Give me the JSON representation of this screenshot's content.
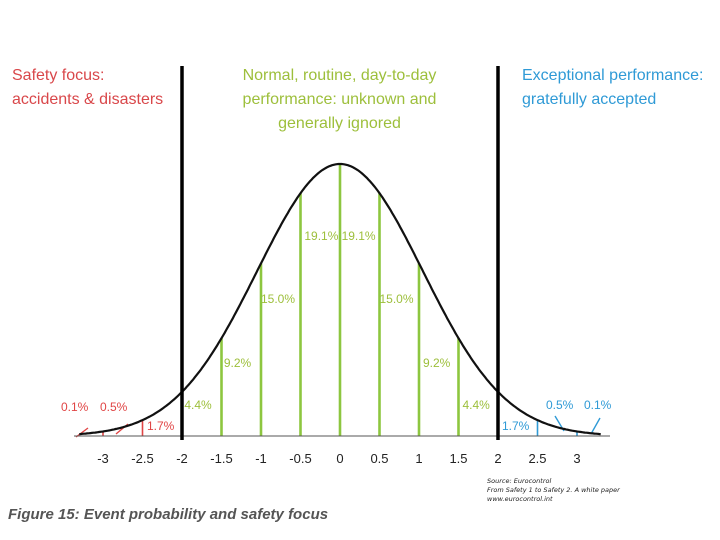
{
  "chart_data": {
    "type": "area",
    "title": "Figure 15: Event probability and safety focus",
    "xlabel": "",
    "ylabel": "",
    "xlim": [
      -3.2,
      3.2
    ],
    "x_ticks": [
      "-3",
      "-2.5",
      "-2",
      "-1.5",
      "-1",
      "-0.5",
      "0",
      "0.5",
      "1",
      "1.5",
      "2",
      "2.5",
      "3"
    ],
    "dividers": [
      -2,
      2
    ],
    "interval_labels": {
      "center": [
        "19.1%",
        "19.1%",
        "15.0%",
        "15.0%",
        "9.2%",
        "9.2%",
        "4.4%",
        "4.4%"
      ],
      "left_tail": [
        "0.1%",
        "0.5%",
        "1.7%"
      ],
      "right_tail": [
        "0.5%",
        "0.1%",
        "1.7%"
      ]
    },
    "series": [
      {
        "name": "center",
        "x": [
          -2,
          -1.5,
          -1,
          -0.5,
          0,
          0.5,
          1,
          1.5,
          2
        ],
        "color": "#8dc63f"
      },
      {
        "name": "left-tail",
        "x": [
          -3,
          -2.5
        ],
        "color": "#e04545"
      },
      {
        "name": "right-tail",
        "x": [
          2.5,
          3
        ],
        "color": "#2f9ad6"
      }
    ]
  },
  "headers": {
    "left": [
      "Safety focus:",
      "accidents & disasters"
    ],
    "center": [
      "Normal, routine, day-to-day",
      "performance: unknown and",
      "generally ignored"
    ],
    "right": [
      "Exceptional performance:",
      "gratefully accepted"
    ]
  },
  "source": [
    "Source:  Eurocontrol",
    "From Safety 1 to Safety 2.  A white paper",
    "www.eurocontrol.int"
  ],
  "colors": {
    "center": "#8dc63f",
    "left": "#e04545",
    "right": "#2f9ad6",
    "curve": "#111111",
    "center_text": "#9dbf3b"
  }
}
